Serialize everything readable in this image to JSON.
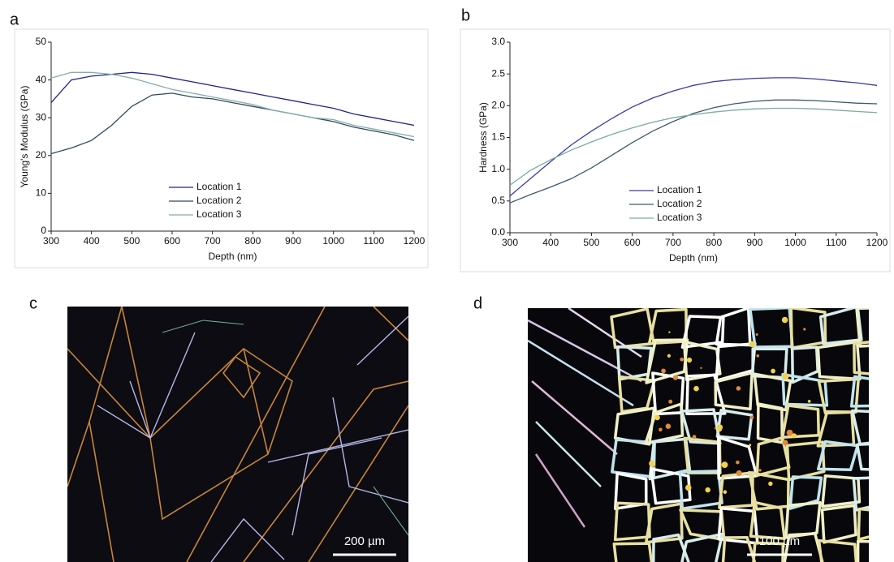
{
  "chart_data": [
    {
      "type": "line",
      "panel": "a",
      "x_label": "Depth (nm)",
      "y_label": "Young's Modulus (GPa)",
      "x": [
        300,
        350,
        400,
        450,
        500,
        550,
        600,
        650,
        700,
        750,
        800,
        850,
        900,
        950,
        1000,
        1050,
        1100,
        1150,
        1200
      ],
      "series": [
        {
          "name": "Location 1",
          "color": "#23238c",
          "values": [
            34,
            40,
            41,
            41.5,
            42,
            41.5,
            40.5,
            39.5,
            38.5,
            37.5,
            36.5,
            35.5,
            34.5,
            33.5,
            32.5,
            31,
            30,
            29,
            28
          ]
        },
        {
          "name": "Location 2",
          "color": "#2e4a62",
          "values": [
            20.5,
            22,
            24,
            28,
            33,
            36,
            36.5,
            35.5,
            35,
            34,
            33,
            32,
            31,
            30,
            29,
            27.5,
            26.5,
            25.5,
            24
          ]
        },
        {
          "name": "Location 3",
          "color": "#86aea9",
          "values": [
            40.5,
            42,
            42,
            41.5,
            40.5,
            39,
            37.5,
            36.5,
            35.5,
            34.5,
            33.5,
            32,
            31,
            30,
            29.5,
            28,
            27,
            26,
            25
          ]
        }
      ],
      "xlim": [
        300,
        1200
      ],
      "ylim": [
        0,
        50
      ],
      "xticks": [
        300,
        400,
        500,
        600,
        700,
        800,
        900,
        1000,
        1100,
        1200
      ],
      "yticks": [
        0,
        10,
        20,
        30,
        40,
        50
      ],
      "grid": false,
      "legend": "bottom"
    },
    {
      "type": "line",
      "panel": "b",
      "x_label": "Depth (nm)",
      "y_label": "Hardness (GPa)",
      "x": [
        300,
        350,
        400,
        450,
        500,
        550,
        600,
        650,
        700,
        750,
        800,
        850,
        900,
        950,
        1000,
        1050,
        1100,
        1150,
        1200
      ],
      "series": [
        {
          "name": "Location 1",
          "color": "#3a3aa8",
          "values": [
            0.58,
            0.85,
            1.12,
            1.38,
            1.6,
            1.8,
            1.98,
            2.12,
            2.23,
            2.32,
            2.38,
            2.41,
            2.43,
            2.44,
            2.44,
            2.42,
            2.39,
            2.36,
            2.32
          ]
        },
        {
          "name": "Location 2",
          "color": "#3d5a6e",
          "values": [
            0.47,
            0.6,
            0.72,
            0.85,
            1.02,
            1.22,
            1.42,
            1.6,
            1.75,
            1.88,
            1.97,
            2.03,
            2.07,
            2.09,
            2.09,
            2.08,
            2.06,
            2.04,
            2.03
          ]
        },
        {
          "name": "Location 3",
          "color": "#7aaaa4",
          "values": [
            0.75,
            0.98,
            1.15,
            1.3,
            1.43,
            1.55,
            1.65,
            1.74,
            1.81,
            1.86,
            1.9,
            1.93,
            1.95,
            1.96,
            1.96,
            1.95,
            1.93,
            1.91,
            1.89
          ]
        }
      ],
      "xlim": [
        300,
        1200
      ],
      "ylim": [
        0,
        3
      ],
      "xticks": [
        300,
        400,
        500,
        600,
        700,
        800,
        900,
        1000,
        1100,
        1200
      ],
      "yticks": [
        {
          "value": 0,
          "label": "0.0"
        },
        0.5,
        {
          "value": 1,
          "label": "1.0"
        },
        1.5,
        {
          "value": 2,
          "label": "2.0"
        },
        2.5,
        {
          "value": 3,
          "label": "3.0"
        }
      ],
      "grid": false,
      "legend": "bottom"
    }
  ],
  "panels": [
    {
      "label": "c",
      "scale_bar": "200 µm"
    },
    {
      "label": "d",
      "scale_bar": "100 µm"
    }
  ]
}
